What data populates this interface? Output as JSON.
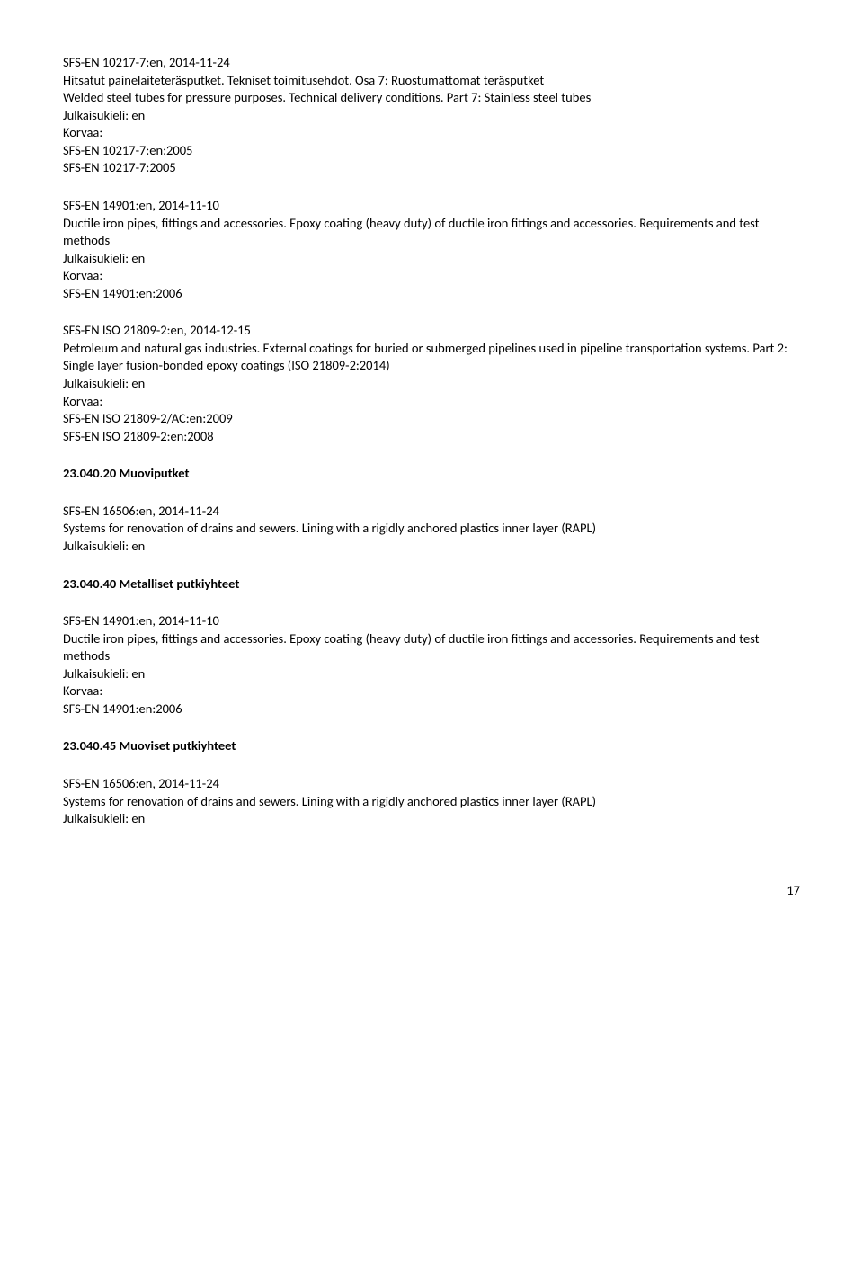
{
  "entries": [
    {
      "lines": [
        "SFS-EN 10217-7:en, 2014-11-24",
        "Hitsatut painelaiteteräsputket. Tekniset toimitusehdot. Osa 7: Ruostumattomat teräsputket",
        "Welded steel tubes for pressure purposes. Technical delivery conditions. Part 7: Stainless steel tubes",
        "Julkaisukieli: en",
        "Korvaa:",
        "SFS-EN 10217-7:en:2005",
        "SFS-EN 10217-7:2005"
      ]
    },
    {
      "lines": [
        "SFS-EN 14901:en, 2014-11-10",
        "Ductile iron pipes, fittings and accessories. Epoxy coating (heavy duty) of ductile iron fittings and accessories. Requirements and test methods",
        "Julkaisukieli: en",
        "Korvaa:",
        "SFS-EN 14901:en:2006"
      ]
    },
    {
      "lines": [
        "SFS-EN ISO 21809-2:en, 2014-12-15",
        "Petroleum and natural gas industries. External coatings for buried or submerged pipelines used in pipeline transportation systems. Part 2: Single layer fusion-bonded epoxy coatings (ISO 21809-2:2014)",
        "Julkaisukieli: en",
        "Korvaa:",
        "SFS-EN ISO 21809-2/AC:en:2009",
        "SFS-EN ISO 21809-2:en:2008"
      ]
    }
  ],
  "section2": {
    "heading": "23.040.20 Muoviputket",
    "entries": [
      {
        "lines": [
          "SFS-EN 16506:en, 2014-11-24",
          "Systems for renovation of drains and sewers. Lining with a rigidly anchored plastics inner layer (RAPL)",
          "Julkaisukieli: en"
        ]
      }
    ]
  },
  "section3": {
    "heading": "23.040.40 Metalliset putkiyhteet",
    "entries": [
      {
        "lines": [
          "SFS-EN 14901:en, 2014-11-10",
          "Ductile iron pipes, fittings and accessories. Epoxy coating (heavy duty) of ductile iron fittings and accessories. Requirements and test methods",
          "Julkaisukieli: en",
          "Korvaa:",
          "SFS-EN 14901:en:2006"
        ]
      }
    ]
  },
  "section4": {
    "heading": "23.040.45 Muoviset putkiyhteet",
    "entries": [
      {
        "lines": [
          "SFS-EN 16506:en, 2014-11-24",
          "Systems for renovation of drains and sewers. Lining with a rigidly anchored plastics inner layer (RAPL)",
          "Julkaisukieli: en"
        ]
      }
    ]
  },
  "pageNumber": "17"
}
